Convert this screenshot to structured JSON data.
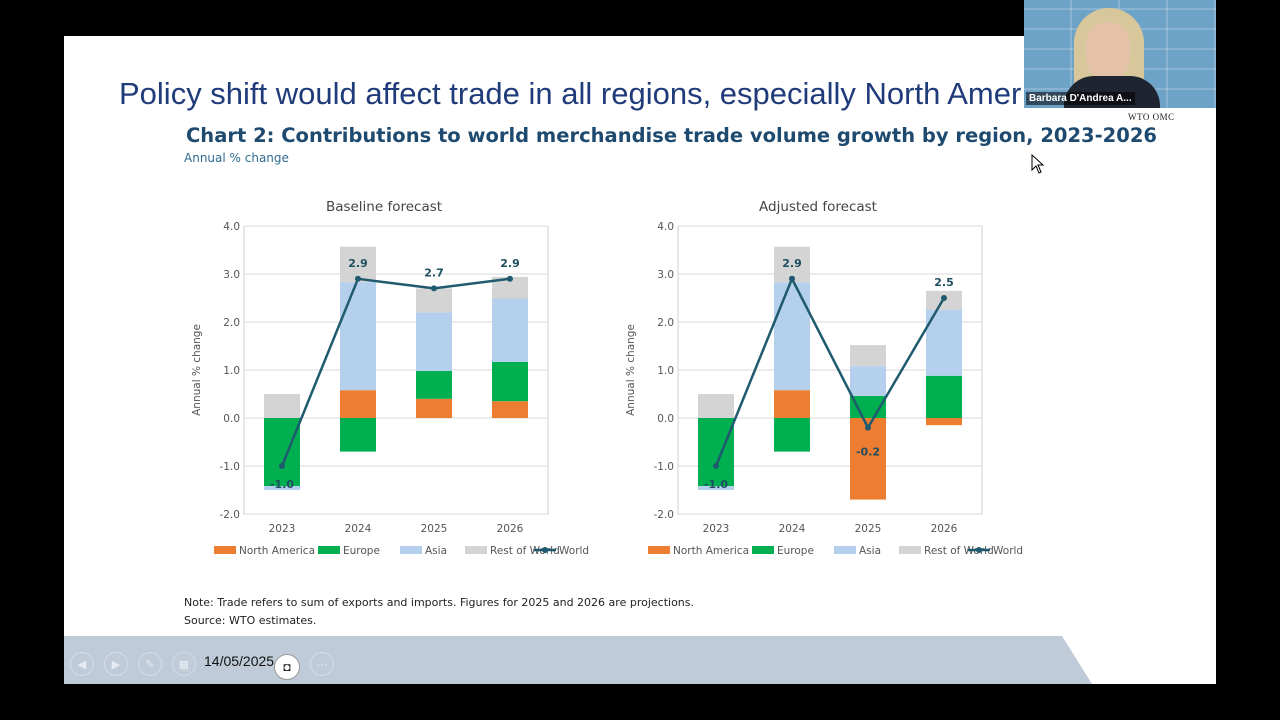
{
  "slide": {
    "title": "Policy shift would affect trade in all regions, especially North Amer",
    "chart_title": "Chart 2: Contributions to world merchandise trade volume growth by region, 2023-2026",
    "chart_subtitle": "Annual % change",
    "note_line1": "Note: Trade refers to sum of exports and imports. Figures for 2025 and 2026 are projections.",
    "note_line2": "Source: WTO estimates."
  },
  "footer": {
    "date": "14/05/2025"
  },
  "webcam": {
    "name": "Barbara D'Andrea A...",
    "label": "WTO OMC"
  },
  "colors": {
    "north_america": "#ed7d31",
    "europe": "#00b050",
    "asia": "#b4d0ec",
    "rest_of_world": "#d4d4d4",
    "world": "#1f5a6e"
  },
  "chart_data": [
    {
      "type": "bar",
      "title": "Baseline forecast",
      "ylabel": "Annual % change",
      "ylim": [
        -2.0,
        4.0
      ],
      "yticks": [
        "4.0",
        "3.0",
        "2.0",
        "1.0",
        "0.0",
        "-1.0",
        "-2.0"
      ],
      "categories": [
        "2023",
        "2024",
        "2025",
        "2026"
      ],
      "series": [
        {
          "name": "North America",
          "values": [
            0.0,
            0.58,
            0.4,
            0.35
          ]
        },
        {
          "name": "Europe",
          "values": [
            -1.42,
            -0.7,
            0.58,
            0.82
          ]
        },
        {
          "name": "Asia",
          "values": [
            -0.08,
            2.25,
            1.22,
            1.32
          ]
        },
        {
          "name": "Rest of World",
          "values": [
            0.5,
            0.74,
            0.5,
            0.45
          ]
        }
      ],
      "line": {
        "name": "World",
        "values": [
          -1.0,
          2.9,
          2.7,
          2.9
        ],
        "labels": [
          "-1.0",
          "2.9",
          "2.7",
          "2.9"
        ]
      }
    },
    {
      "type": "bar",
      "title": "Adjusted forecast",
      "ylabel": "Annual % change",
      "ylim": [
        -2.0,
        4.0
      ],
      "yticks": [
        "4.0",
        "3.0",
        "2.0",
        "1.0",
        "0.0",
        "-1.0",
        "-2.0"
      ],
      "categories": [
        "2023",
        "2024",
        "2025",
        "2026"
      ],
      "series": [
        {
          "name": "North America",
          "values": [
            0.0,
            0.58,
            -1.7,
            -0.15
          ]
        },
        {
          "name": "Europe",
          "values": [
            -1.42,
            -0.7,
            0.46,
            0.88
          ]
        },
        {
          "name": "Asia",
          "values": [
            -0.08,
            2.25,
            0.62,
            1.37
          ]
        },
        {
          "name": "Rest of World",
          "values": [
            0.5,
            0.74,
            0.44,
            0.4
          ]
        }
      ],
      "line": {
        "name": "World",
        "values": [
          -1.0,
          2.9,
          -0.2,
          2.5
        ],
        "labels": [
          "-1.0",
          "2.9",
          "-0.2",
          "2.5"
        ]
      }
    }
  ]
}
